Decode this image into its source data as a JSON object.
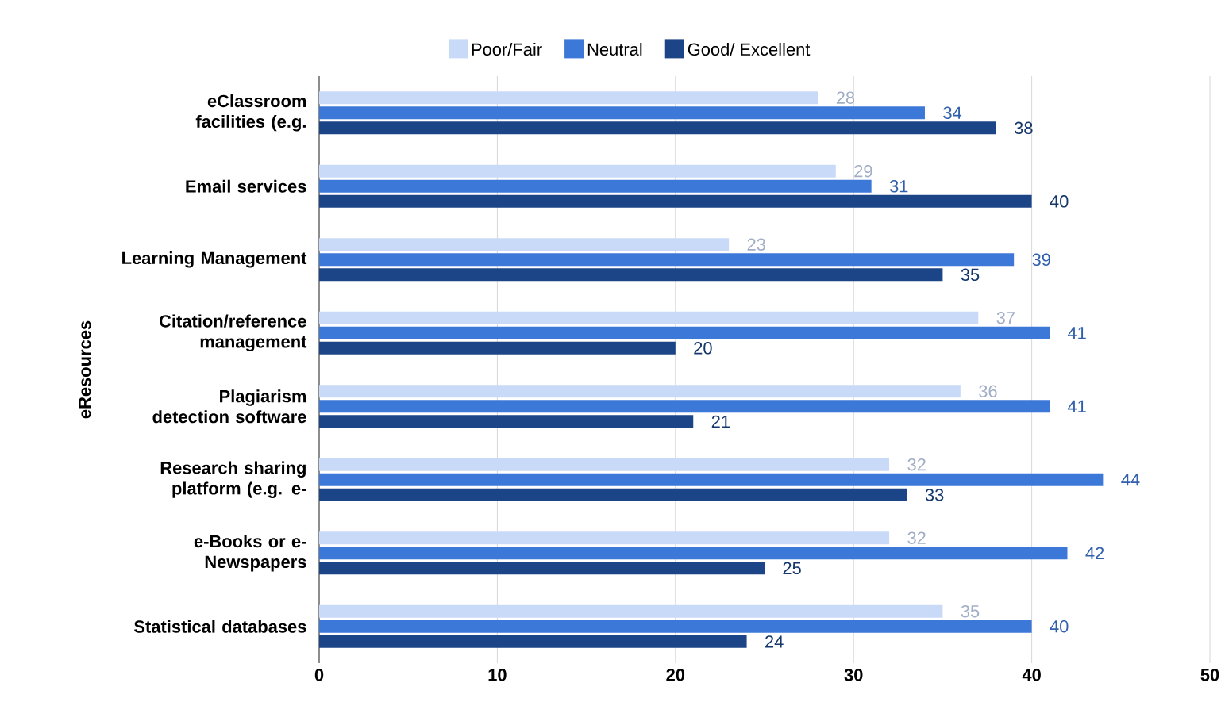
{
  "chart_data": {
    "type": "bar",
    "orientation": "horizontal",
    "ylabel": "eResources",
    "categories": [
      "eClassroom facilities (e.g.",
      "Email services",
      "Learning Management",
      "Citation/reference management",
      "Plagiarism detection software",
      "Research sharing platform (e.g. e-",
      "e-Books or e-Newspapers",
      "Statistical databases"
    ],
    "series": [
      {
        "name": "Poor/Fair",
        "color": "#c9daf8",
        "values": [
          28,
          29,
          23,
          37,
          36,
          32,
          32,
          35
        ]
      },
      {
        "name": "Neutral",
        "color": "#3c78d8",
        "values": [
          34,
          31,
          39,
          41,
          41,
          44,
          42,
          40
        ]
      },
      {
        "name": "Good/ Excellent",
        "color": "#1c4587",
        "values": [
          38,
          40,
          35,
          20,
          21,
          33,
          25,
          24
        ]
      }
    ],
    "xlim": [
      0,
      50
    ],
    "xticks": [
      0,
      10,
      20,
      30,
      40,
      50
    ],
    "grid": "x",
    "legend": "top",
    "data_labels": true
  }
}
